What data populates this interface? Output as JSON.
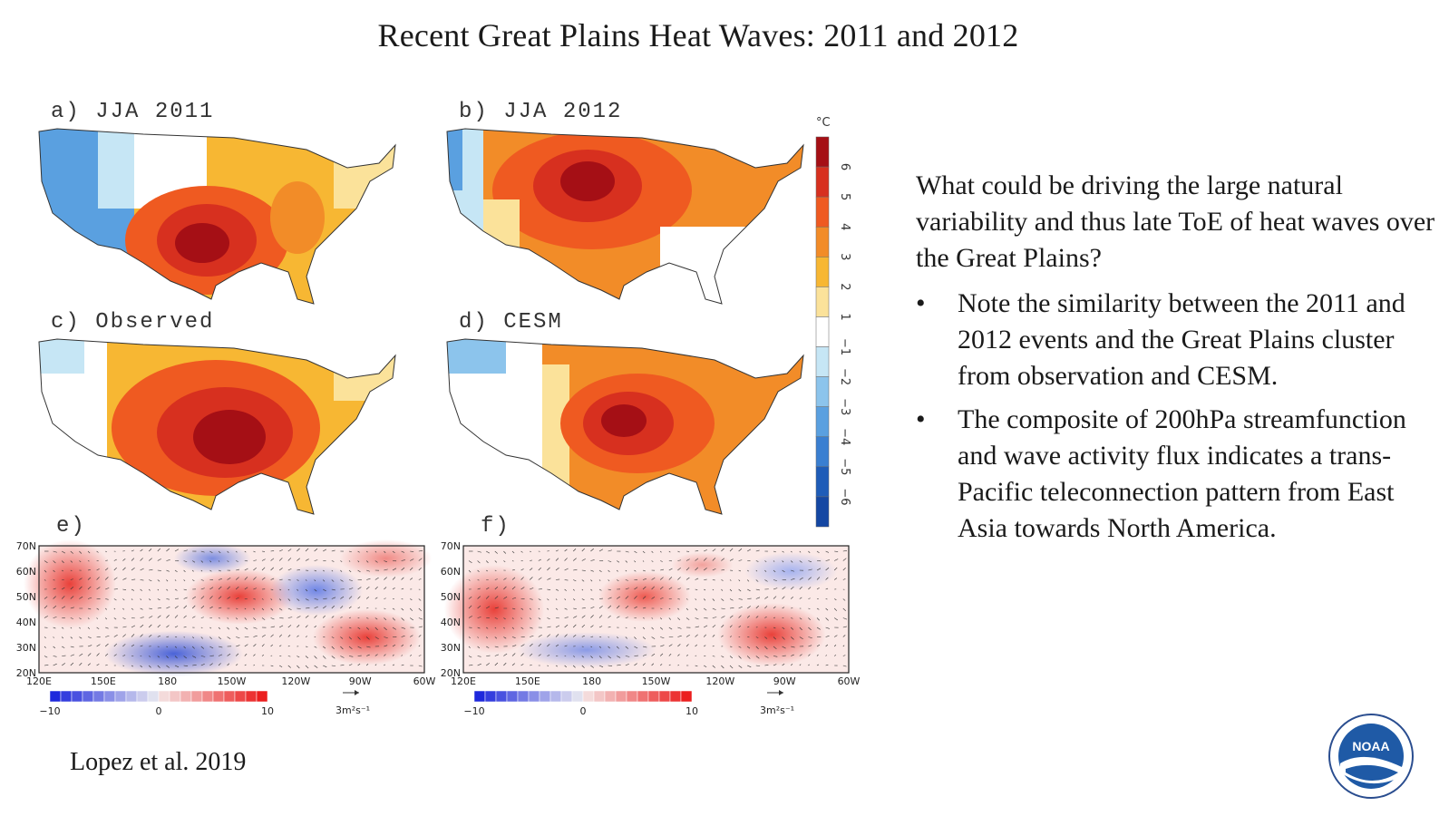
{
  "slide": {
    "title": "Recent Great Plains Heat Waves: 2011 and 2012",
    "citation": "Lopez et al. 2019",
    "logo_text": "NOAA"
  },
  "panels": {
    "a": "a) JJA 2011",
    "b": "b) JJA 2012",
    "c": "c) Observed",
    "d": "d) CESM",
    "e": "e)",
    "f": "f)"
  },
  "colorbar": {
    "unit": "°C",
    "ticks": [
      "6",
      "5",
      "4",
      "3",
      "2",
      "1",
      "−1",
      "−2",
      "−3",
      "−4",
      "−5",
      "−6"
    ],
    "colors": [
      "#a50f15",
      "#d7301f",
      "#ef5a21",
      "#f28c28",
      "#f7b733",
      "#fbe29a",
      "#ffffff",
      "#c6e6f5",
      "#8cc4ec",
      "#5aa0e0",
      "#3a7fd1",
      "#1e5cb8",
      "#1447a3"
    ]
  },
  "flux_panels": {
    "lat_labels": [
      "70N",
      "60N",
      "50N",
      "40N",
      "30N",
      "20N"
    ],
    "lon_labels": [
      "120E",
      "150E",
      "180",
      "150W",
      "120W",
      "90W",
      "60W"
    ],
    "scale_ticks": [
      "−10",
      "0",
      "10"
    ],
    "vector_scale": "3m²s⁻¹"
  },
  "text": {
    "question": "What could be driving the large natural variability and thus late ToE of heat waves over the Great Plains?",
    "bullets": [
      "Note the similarity between the 2011 and 2012 events and the Great Plains cluster from observation and CESM.",
      "The composite of 200hPa streamfunction and wave activity flux indicates a trans-Pacific teleconnection pattern from East Asia towards North America."
    ],
    "bullet_symbol": "•"
  }
}
